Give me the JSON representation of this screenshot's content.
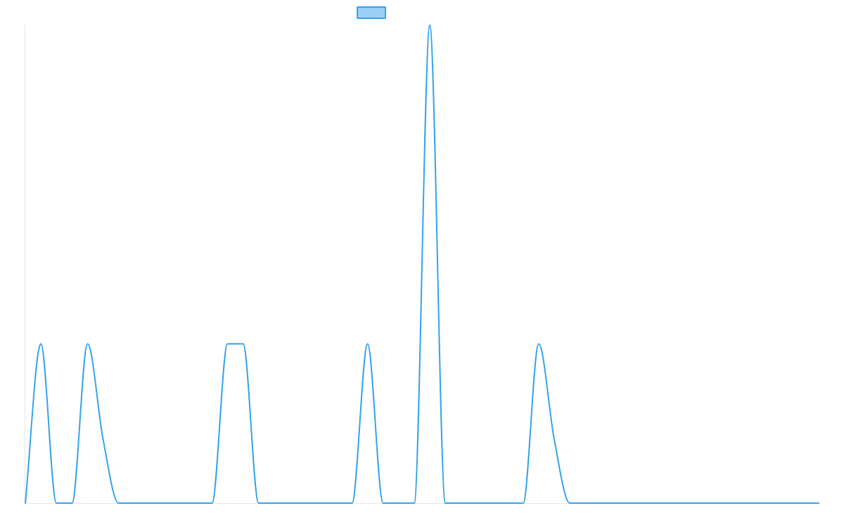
{
  "chart_data": {
    "type": "line",
    "title": "",
    "xlabel": "",
    "ylabel": "",
    "legend": {
      "placement": "top-center",
      "entries": [
        ""
      ]
    },
    "grid": false,
    "xlim": [
      0,
      51
    ],
    "ylim": [
      0,
      3
    ],
    "series": [
      {
        "name": "",
        "color": "#36a2eb",
        "fill": "#9ad0f5",
        "x": [
          0,
          1,
          2,
          3,
          4,
          5,
          6,
          7,
          8,
          9,
          10,
          11,
          12,
          13,
          14,
          15,
          16,
          17,
          18,
          19,
          20,
          21,
          22,
          23,
          24,
          25,
          26,
          27,
          28,
          29,
          30,
          31,
          32,
          33,
          34,
          35,
          36,
          37,
          38,
          39,
          40,
          41,
          42,
          43,
          44,
          45,
          46,
          47,
          48,
          49,
          50,
          51
        ],
        "values": [
          0,
          1,
          0,
          0,
          1,
          0.4,
          0,
          0,
          0,
          0,
          0,
          0,
          0,
          1,
          1,
          0,
          0,
          0,
          0,
          0,
          0,
          0,
          1,
          0,
          0,
          0,
          3,
          0,
          0,
          0,
          0,
          0,
          0,
          1,
          0.4,
          0,
          0,
          0,
          0,
          0,
          0,
          0,
          0,
          0,
          0,
          0,
          0,
          0,
          0,
          0,
          0,
          0
        ]
      }
    ]
  }
}
